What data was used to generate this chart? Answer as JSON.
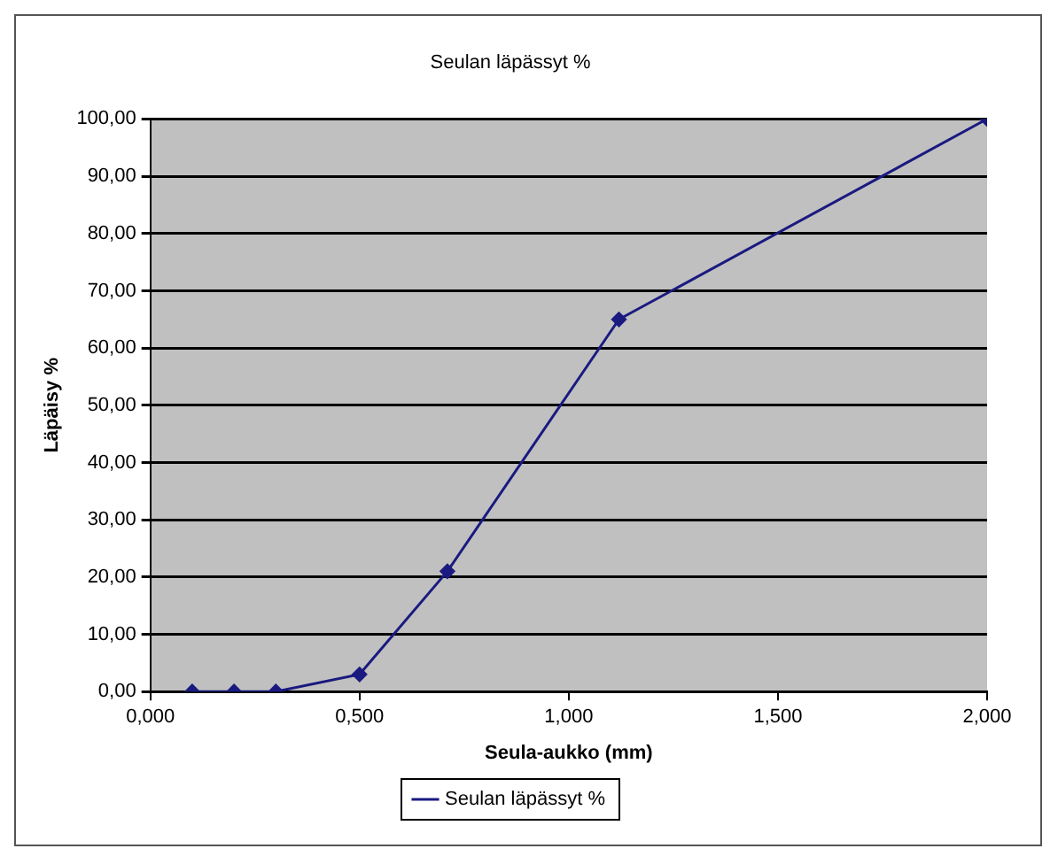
{
  "chart_data": {
    "type": "line",
    "title": "Seulan läpässyt %",
    "xlabel": "Seula-aukko (mm)",
    "ylabel": "Läpäisy %",
    "series": [
      {
        "name": "Seulan läpässyt %",
        "color": "#1a1a80",
        "x": [
          0.1,
          0.2,
          0.3,
          0.5,
          0.71,
          1.12,
          2.0
        ],
        "values": [
          0,
          0,
          0,
          3,
          21,
          65,
          100
        ]
      }
    ],
    "xlim": [
      0,
      2
    ],
    "xticks": [
      {
        "value": 0,
        "label": "0,000"
      },
      {
        "value": 0.5,
        "label": "0,500"
      },
      {
        "value": 1,
        "label": "1,000"
      },
      {
        "value": 1.5,
        "label": "1,500"
      },
      {
        "value": 2,
        "label": "2,000"
      }
    ],
    "ylim": [
      0,
      100
    ],
    "yticks": [
      {
        "value": 0,
        "label": "0,00"
      },
      {
        "value": 10,
        "label": "10,00"
      },
      {
        "value": 20,
        "label": "20,00"
      },
      {
        "value": 30,
        "label": "30,00"
      },
      {
        "value": 40,
        "label": "40,00"
      },
      {
        "value": 50,
        "label": "50,00"
      },
      {
        "value": 60,
        "label": "60,00"
      },
      {
        "value": 70,
        "label": "70,00"
      },
      {
        "value": 80,
        "label": "80,00"
      },
      {
        "value": 90,
        "label": "90,00"
      },
      {
        "value": 100,
        "label": "100,00"
      }
    ],
    "grid": "y",
    "legend": "bottom",
    "marker": "diamond",
    "line_style": "solid"
  }
}
